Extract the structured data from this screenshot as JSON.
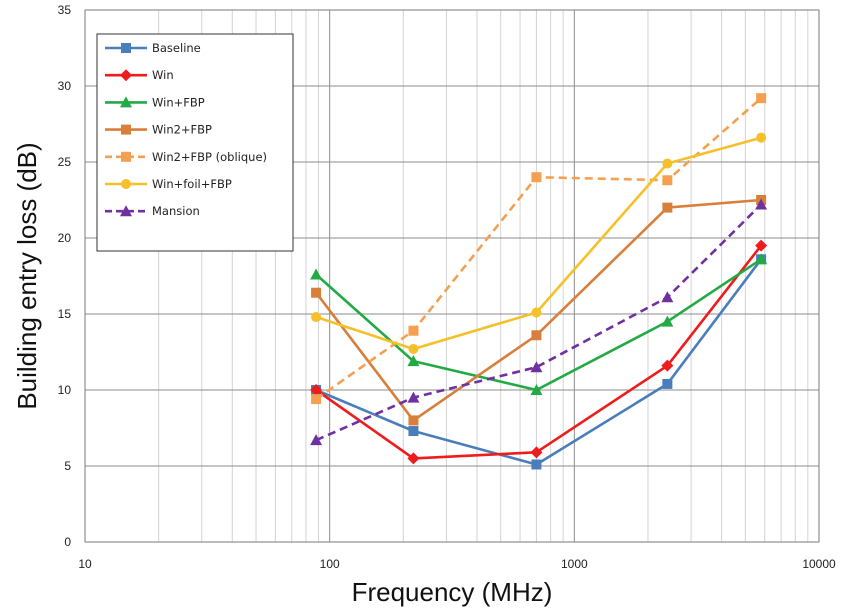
{
  "chart_data": {
    "type": "line",
    "title": "",
    "xlabel": "Frequency (MHz)",
    "ylabel": "Building entry loss (dB)",
    "xscale": "log",
    "xlim": [
      10,
      10000
    ],
    "ylim": [
      0,
      35
    ],
    "x_ticks": [
      10,
      100,
      1000,
      10000
    ],
    "x_tick_labels": [
      "10",
      "100",
      "1000",
      "10000"
    ],
    "y_ticks": [
      0,
      5,
      10,
      15,
      20,
      25,
      30,
      35
    ],
    "y_tick_labels": [
      "0",
      "5",
      "10",
      "15",
      "20",
      "25",
      "30",
      "35"
    ],
    "grid": "major and minor",
    "legend_position": "top-left",
    "series": [
      {
        "name": "Baseline",
        "color": "#4a7ebb",
        "marker": "square",
        "dash": false,
        "x": [
          88,
          220,
          700,
          2400,
          5800
        ],
        "y": [
          10.0,
          7.3,
          5.1,
          10.4,
          18.6
        ]
      },
      {
        "name": "Win",
        "color": "#ee1c1c",
        "marker": "diamond",
        "dash": false,
        "x": [
          88,
          220,
          700,
          2400,
          5800
        ],
        "y": [
          10.0,
          5.5,
          5.9,
          11.6,
          19.5
        ]
      },
      {
        "name": "Win+FBP",
        "color": "#22aa44",
        "marker": "triangle",
        "dash": false,
        "x": [
          88,
          220,
          700,
          2400,
          5800
        ],
        "y": [
          17.6,
          11.9,
          10.0,
          14.5,
          18.6
        ]
      },
      {
        "name": "Win2+FBP",
        "color": "#d87f3c",
        "marker": "square",
        "dash": false,
        "x": [
          88,
          220,
          700,
          2400,
          5800
        ],
        "y": [
          16.4,
          8.0,
          13.6,
          22.0,
          22.5
        ]
      },
      {
        "name": "Win2+FBP (oblique)",
        "color": "#f5a050",
        "marker": "square",
        "dash": true,
        "x": [
          88,
          220,
          700,
          2400,
          5800
        ],
        "y": [
          9.4,
          13.9,
          24.0,
          23.8,
          29.2
        ]
      },
      {
        "name": "Win+foil+FBP",
        "color": "#f6c02a",
        "marker": "circle",
        "dash": false,
        "x": [
          88,
          220,
          700,
          2400,
          5800
        ],
        "y": [
          14.8,
          12.7,
          15.1,
          24.9,
          26.6
        ]
      },
      {
        "name": "Mansion",
        "color": "#7030a0",
        "marker": "triangle",
        "dash": true,
        "x": [
          88,
          220,
          700,
          2400,
          5800
        ],
        "y": [
          6.7,
          9.5,
          11.5,
          16.1,
          22.2
        ]
      }
    ]
  }
}
